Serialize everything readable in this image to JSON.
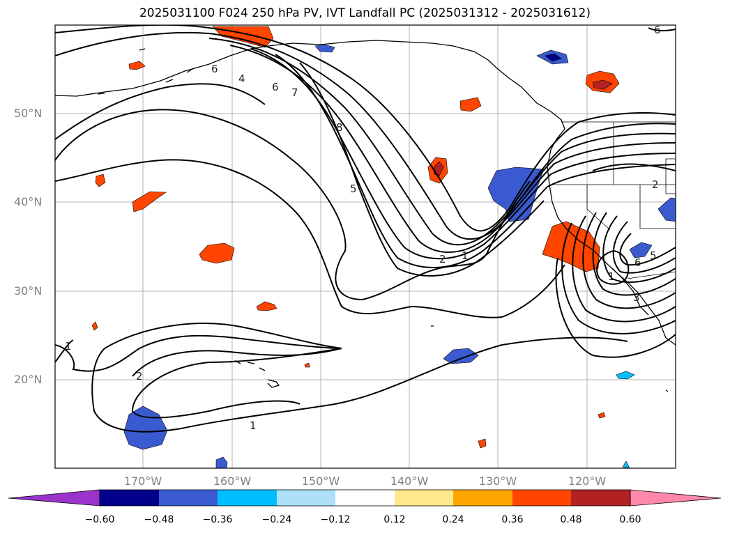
{
  "title": "2025031100 F024 250 hPa PV, IVT Landfall PC (2025031312 - 2025031612)",
  "lat_labels": [
    "50°N",
    "40°N",
    "30°N",
    "20°N"
  ],
  "lon_labels": [
    "170°W",
    "160°W",
    "150°W",
    "140°W",
    "130°W",
    "120°W"
  ],
  "colorbar": {
    "ticks": [
      "−0.60",
      "−0.48",
      "−0.36",
      "−0.24",
      "−0.12",
      "0.12",
      "0.24",
      "0.36",
      "0.48",
      "0.60"
    ],
    "colors": [
      "#9933cc",
      "#00008b",
      "#3a5bd0",
      "#00bfff",
      "#aee0fa",
      "#ffffff",
      "#ffe98a",
      "#ffa500",
      "#ff4500",
      "#b22222",
      "#ff88aa"
    ]
  },
  "contour_labels": {
    "c6_top": "6",
    "c4_top": "4",
    "c6b_top": "6",
    "c7_top": "7",
    "c8": "8",
    "c5_mid": "5",
    "c2_trough": "2",
    "c1_trough": "1",
    "c2_east": "2",
    "c1_west": "1",
    "c2_west": "2",
    "c1_south": "1",
    "c1_low": "1",
    "c6_low": "6",
    "c5_low": "5",
    "c3_low": "3",
    "c6_ne": "6"
  },
  "colors": {
    "positive": "#ff4500",
    "positive_dark": "#b22222",
    "negative": "#3a5bd0",
    "negative_dark": "#00008b"
  }
}
